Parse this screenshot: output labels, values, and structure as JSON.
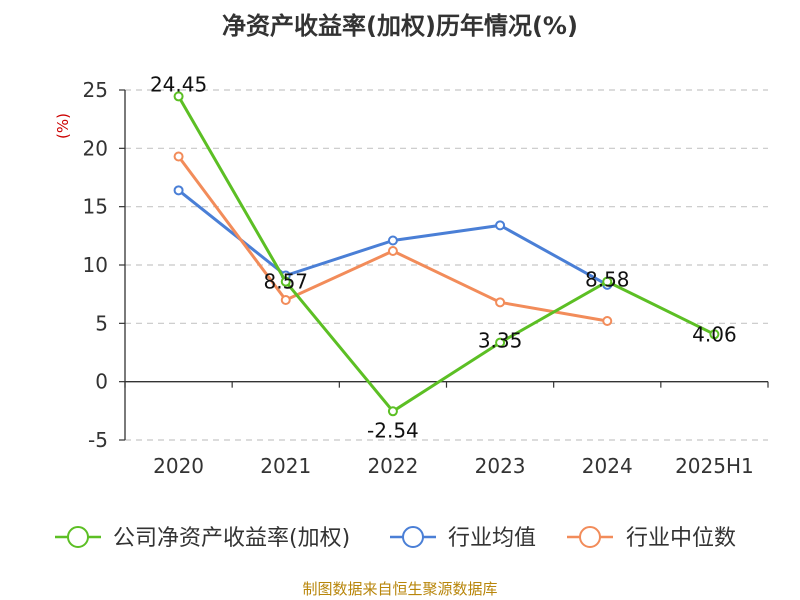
{
  "chart_data": {
    "type": "line",
    "title": "净资产收益率(加权)历年情况(%)",
    "ylabel": "(%)",
    "xlabel": "",
    "categories": [
      "2020",
      "2021",
      "2022",
      "2023",
      "2024",
      "2025H1"
    ],
    "ylim": [
      -5,
      25
    ],
    "yticks": [
      -5,
      0,
      5,
      10,
      15,
      20,
      25
    ],
    "grid": true,
    "legend_position": "bottom",
    "series": [
      {
        "name": "公司净资产收益率(加权)",
        "color": "#5cbf24",
        "values": [
          24.45,
          8.57,
          -2.54,
          3.35,
          8.58,
          4.06
        ],
        "labels": [
          "24.45",
          "8.57",
          "-2.54",
          "3.35",
          "8.58",
          "4.06"
        ]
      },
      {
        "name": "行业均值",
        "color": "#4a7fd6",
        "values": [
          16.4,
          9.1,
          12.1,
          13.4,
          8.3,
          null
        ]
      },
      {
        "name": "行业中位数",
        "color": "#f28c5a",
        "values": [
          19.3,
          7.0,
          11.2,
          6.8,
          5.2,
          null
        ]
      }
    ]
  },
  "source": "制图数据来自恒生聚源数据库"
}
